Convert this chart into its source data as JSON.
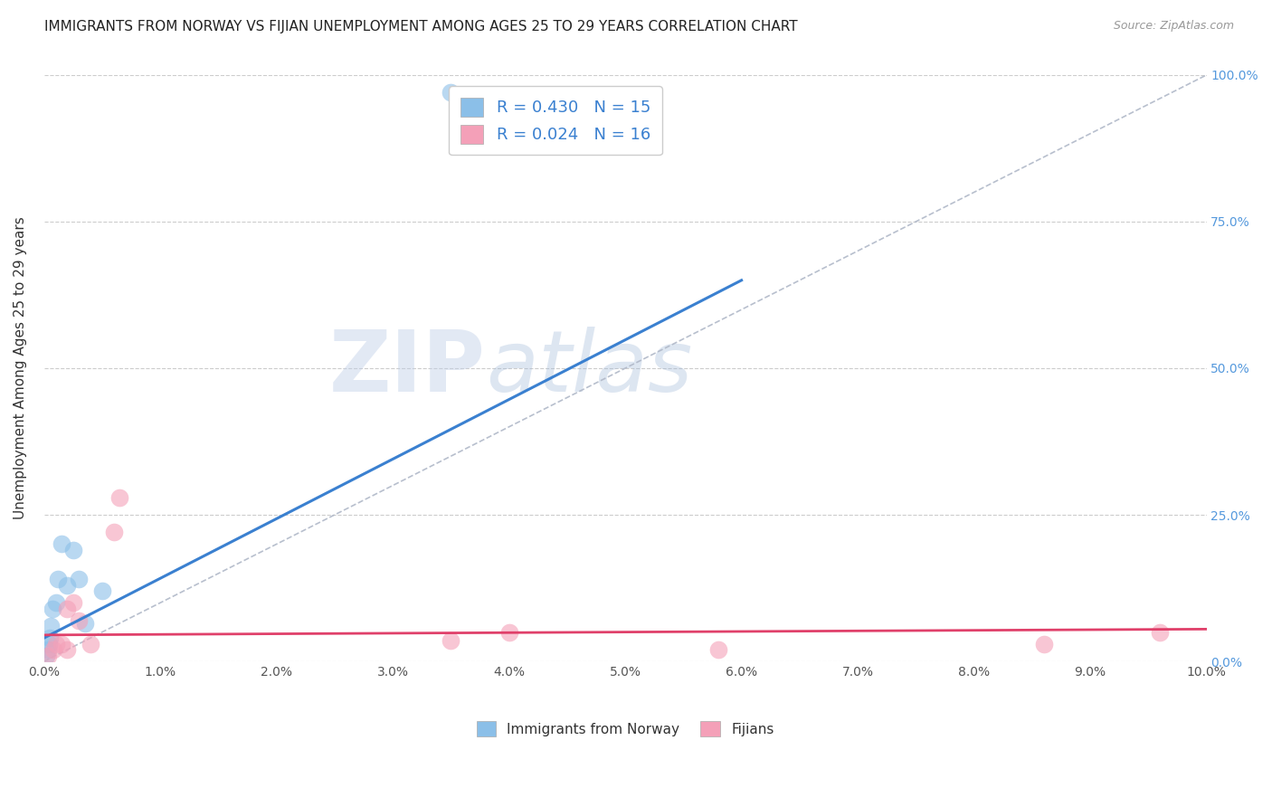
{
  "title": "IMMIGRANTS FROM NORWAY VS FIJIAN UNEMPLOYMENT AMONG AGES 25 TO 29 YEARS CORRELATION CHART",
  "source": "Source: ZipAtlas.com",
  "ylabel": "Unemployment Among Ages 25 to 29 years",
  "xmin": 0.0,
  "xmax": 0.1,
  "ymin": 0.0,
  "ymax": 1.0,
  "norway_x": [
    0.0002,
    0.0003,
    0.0004,
    0.0005,
    0.0006,
    0.0007,
    0.001,
    0.0012,
    0.0015,
    0.002,
    0.0025,
    0.003,
    0.0035,
    0.005,
    0.035
  ],
  "norway_y": [
    0.01,
    0.02,
    0.03,
    0.04,
    0.06,
    0.09,
    0.1,
    0.14,
    0.2,
    0.13,
    0.19,
    0.14,
    0.065,
    0.12,
    0.97
  ],
  "fijian_x": [
    0.0003,
    0.0008,
    0.001,
    0.0015,
    0.002,
    0.002,
    0.0025,
    0.003,
    0.004,
    0.006,
    0.0065,
    0.035,
    0.04,
    0.058,
    0.086,
    0.096
  ],
  "fijian_y": [
    0.01,
    0.02,
    0.03,
    0.03,
    0.02,
    0.09,
    0.1,
    0.07,
    0.03,
    0.22,
    0.28,
    0.035,
    0.05,
    0.02,
    0.03,
    0.05
  ],
  "norway_color": "#8bbfe8",
  "fijian_color": "#f4a0b8",
  "norway_line_color": "#3a80d0",
  "fijian_line_color": "#e0406a",
  "diag_line_color": "#b0b8c8",
  "R_norway": 0.43,
  "N_norway": 15,
  "R_fijian": 0.024,
  "N_fijian": 16,
  "legend_norway": "Immigrants from Norway",
  "legend_fijian": "Fijians",
  "watermark_zip": "ZIP",
  "watermark_atlas": "atlas",
  "background_color": "#ffffff",
  "grid_color": "#cccccc",
  "title_fontsize": 11,
  "axis_label_fontsize": 11,
  "tick_fontsize": 10,
  "norway_trend_x0": 0.0,
  "norway_trend_y0": 0.04,
  "norway_trend_x1": 0.06,
  "norway_trend_y1": 0.65,
  "fijian_trend_x0": 0.0,
  "fijian_trend_y0": 0.045,
  "fijian_trend_x1": 0.1,
  "fijian_trend_y1": 0.055
}
